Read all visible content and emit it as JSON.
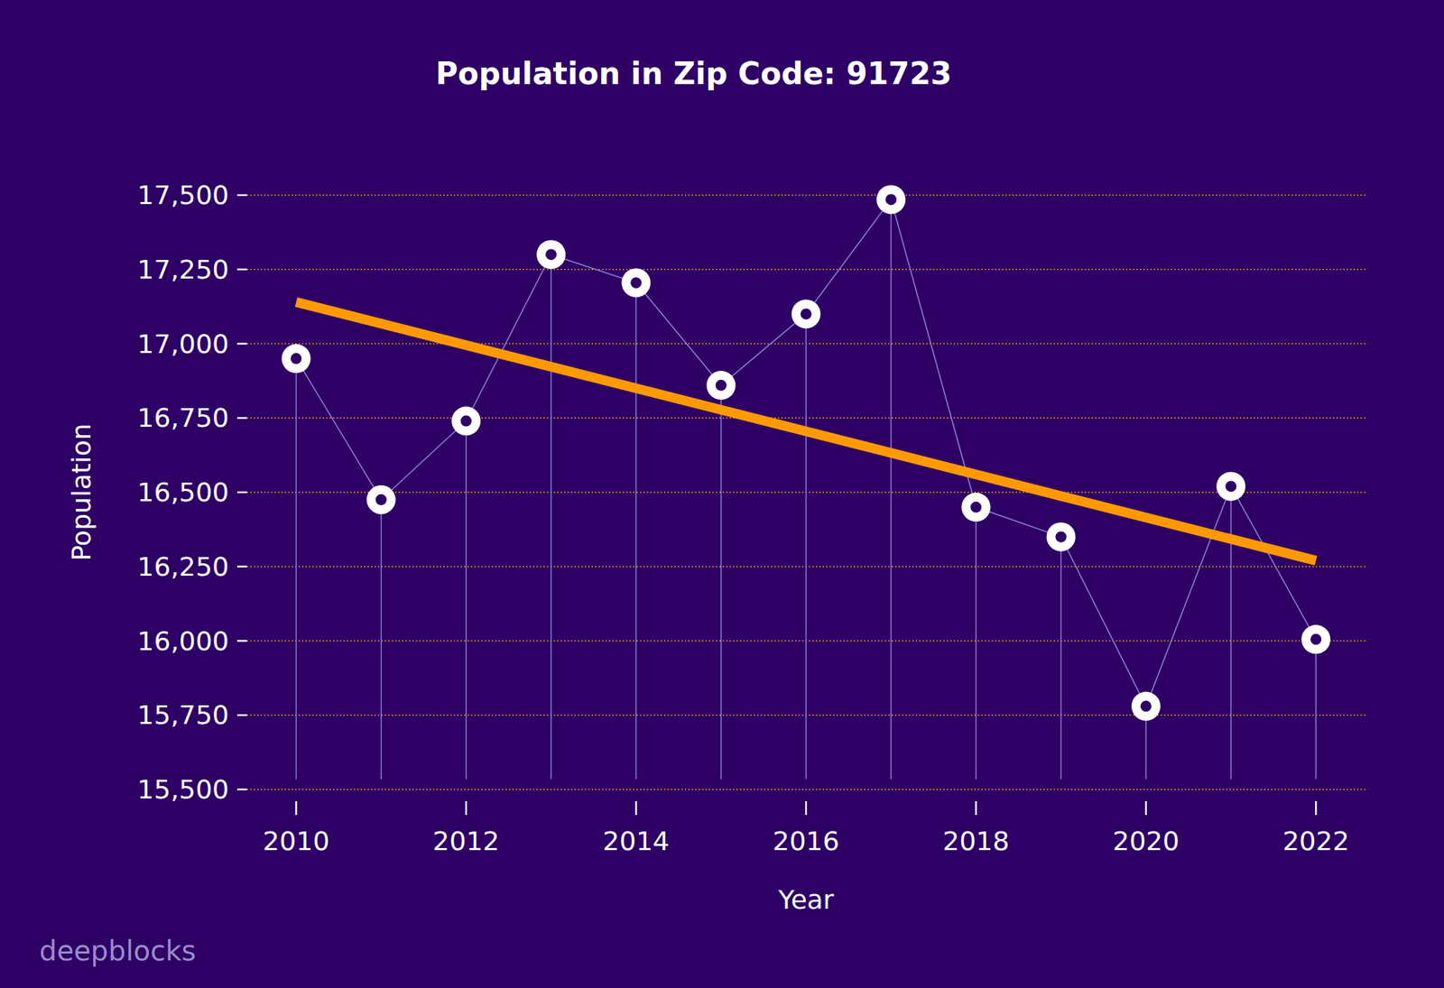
{
  "chart_data": {
    "type": "line",
    "title": "Population in Zip Code: 91723",
    "x_label": "Year",
    "y_label": "Population",
    "watermark": "deepblocks",
    "x": [
      2010,
      2011,
      2012,
      2013,
      2014,
      2015,
      2016,
      2017,
      2018,
      2019,
      2020,
      2021,
      2022
    ],
    "series": [
      {
        "color": "#ffffff",
        "marker": "circle",
        "values": [
          16950,
          16475,
          16740,
          17300,
          17205,
          16860,
          17100,
          17485,
          16450,
          16350,
          15780,
          16520,
          16005
        ]
      },
      {
        "type": "line",
        "color": "#ff9900",
        "line_style": "solid",
        "x": [
          2010,
          2022
        ],
        "values": [
          17140,
          16270
        ]
      }
    ],
    "xlim": [
      2009.42,
      2022.59
    ],
    "xticks": [
      2010,
      2012,
      2014,
      2016,
      2018,
      2020,
      2022
    ],
    "ylim": [
      15500,
      17500
    ],
    "yticks": [
      {
        "value": 15500,
        "label": "15,500"
      },
      {
        "value": 15750,
        "label": "15,750"
      },
      {
        "value": 16000,
        "label": "16,000"
      },
      {
        "value": 16250,
        "label": "16,250"
      },
      {
        "value": 16500,
        "label": "16,500"
      },
      {
        "value": 16750,
        "label": "16,750"
      },
      {
        "value": 17000,
        "label": "17,000"
      },
      {
        "value": 17250,
        "label": "17,250"
      },
      {
        "value": 17500,
        "label": "17,500"
      }
    ],
    "grid": true
  }
}
